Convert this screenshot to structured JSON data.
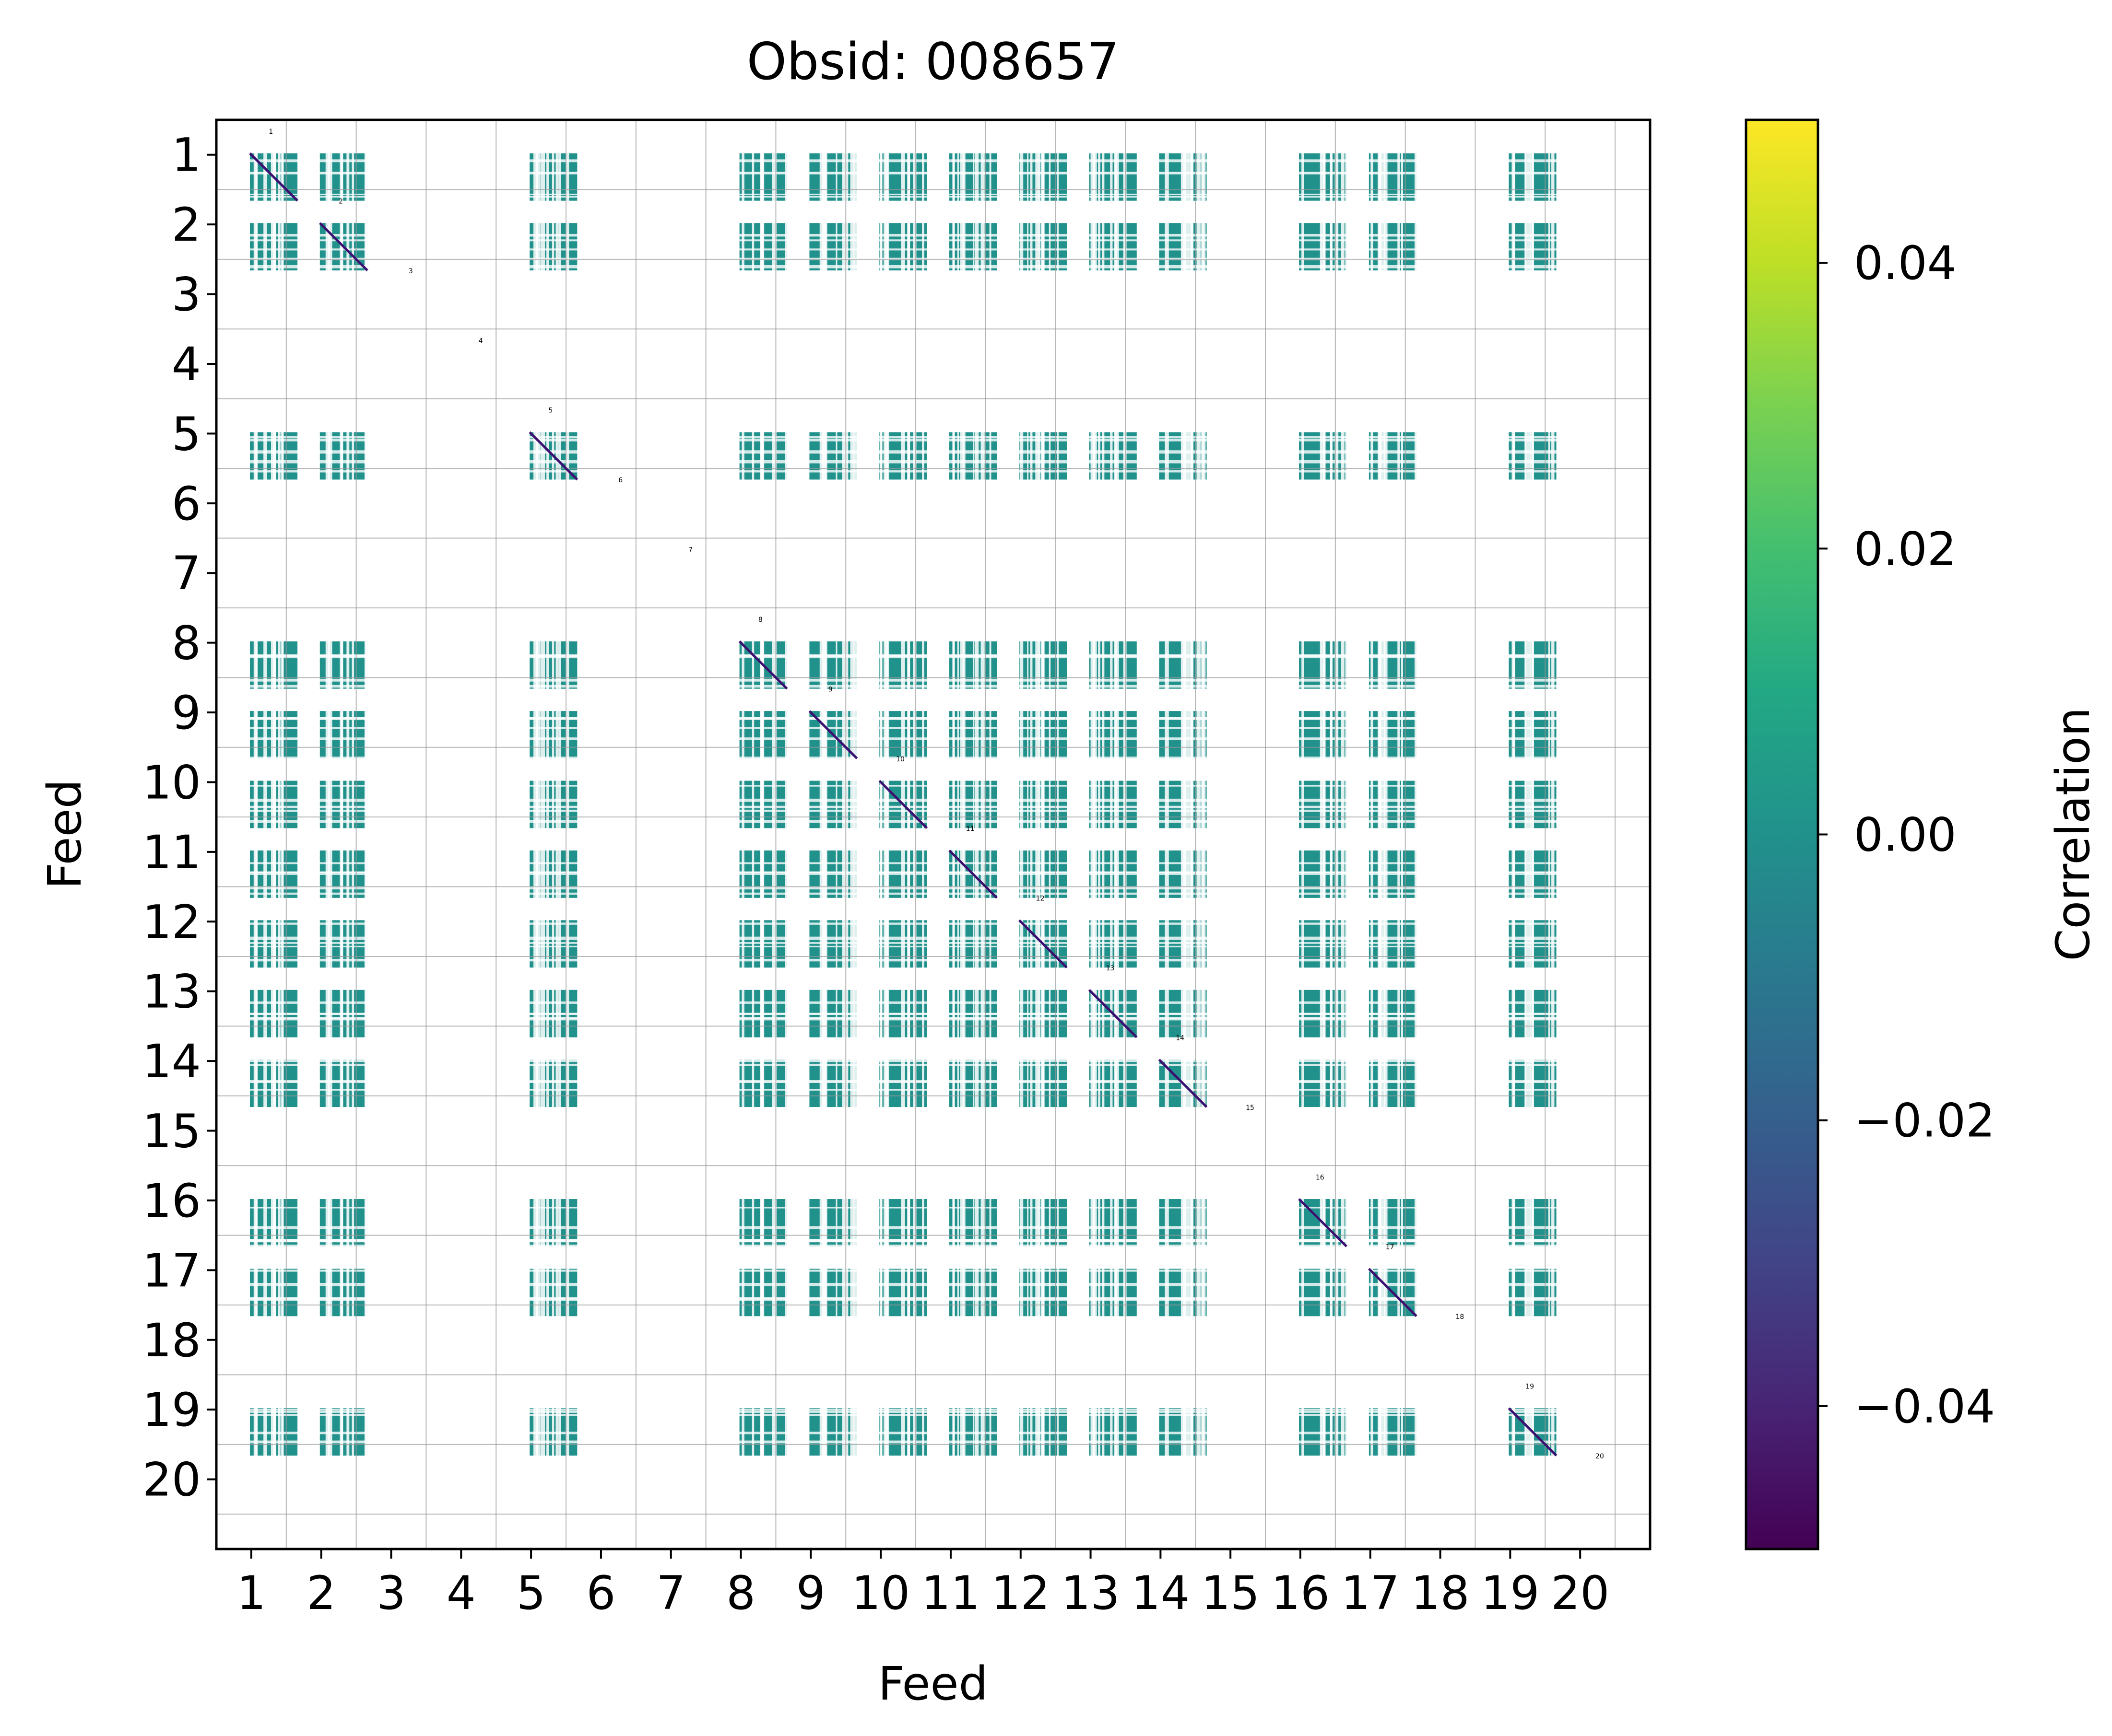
{
  "chart_data": {
    "type": "heatmap",
    "title": "Obsid: 008657",
    "xlabel": "Feed",
    "ylabel": "Feed",
    "feeds": [
      1,
      2,
      3,
      4,
      5,
      6,
      7,
      8,
      9,
      10,
      11,
      12,
      13,
      14,
      15,
      16,
      17,
      18,
      19,
      20
    ],
    "x_ticks": [
      "1",
      "2",
      "3",
      "4",
      "5",
      "6",
      "7",
      "8",
      "9",
      "10",
      "11",
      "12",
      "13",
      "14",
      "15",
      "16",
      "17",
      "18",
      "19",
      "20"
    ],
    "y_ticks": [
      "1",
      "2",
      "3",
      "4",
      "5",
      "6",
      "7",
      "8",
      "9",
      "10",
      "11",
      "12",
      "13",
      "14",
      "15",
      "16",
      "17",
      "18",
      "19",
      "20"
    ],
    "colorbar": {
      "label": "Correlation",
      "colormap": "viridis",
      "range": [
        -0.05,
        0.05
      ],
      "ticks": [
        -0.04,
        -0.02,
        0.0,
        0.02,
        0.04
      ],
      "tick_labels": [
        "−0.04",
        "−0.02",
        "0.00",
        "0.02",
        "0.04"
      ]
    },
    "active_feeds": [
      1,
      2,
      5,
      8,
      9,
      10,
      11,
      12,
      13,
      14,
      16,
      17,
      19
    ],
    "inactive_feeds": [
      3,
      4,
      6,
      7,
      15,
      18,
      20
    ],
    "block_value": 0.0,
    "block_color": "#21918c",
    "diagonal_color": "#3b0f70",
    "grid": true,
    "diagonal_annotations": [
      "1",
      "2",
      "3",
      "4",
      "5",
      "6",
      "7",
      "8",
      "9",
      "10",
      "11",
      "12",
      "13",
      "14",
      "15",
      "16",
      "17",
      "18",
      "19",
      "20"
    ]
  }
}
